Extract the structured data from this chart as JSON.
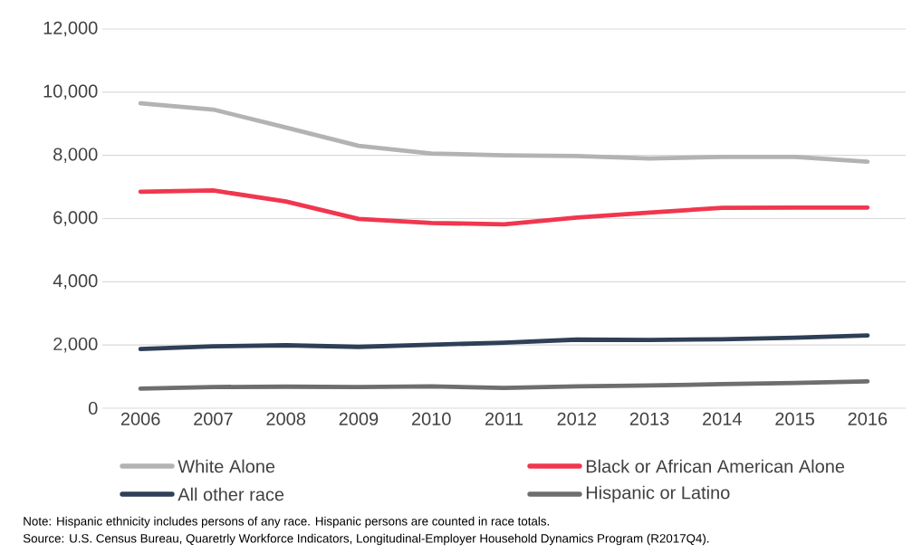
{
  "chart_data": {
    "type": "line",
    "categories": [
      "2006",
      "2007",
      "2008",
      "2009",
      "2010",
      "2011",
      "2012",
      "2013",
      "2014",
      "2015",
      "2016"
    ],
    "series": [
      {
        "name": "White Alone",
        "color": "#b3b3b3",
        "values": [
          9650,
          9450,
          8880,
          8300,
          8060,
          8000,
          7980,
          7900,
          7950,
          7950,
          7800
        ]
      },
      {
        "name": "Black or African American Alone",
        "color": "#f0374e",
        "values": [
          6850,
          6890,
          6540,
          5990,
          5860,
          5820,
          6030,
          6190,
          6340,
          6350,
          6350
        ]
      },
      {
        "name": "All other race",
        "color": "#2e3f56",
        "values": [
          1870,
          1960,
          1990,
          1940,
          2010,
          2070,
          2170,
          2160,
          2180,
          2230,
          2300
        ]
      },
      {
        "name": "Hispanic or Latino",
        "color": "#6e6e6e",
        "values": [
          620,
          670,
          680,
          670,
          690,
          640,
          690,
          720,
          760,
          800,
          850
        ]
      }
    ],
    "ylim": [
      0,
      12000
    ],
    "yticks": [
      {
        "value": 0,
        "label": "0"
      },
      {
        "value": 2000,
        "label": "2,000"
      },
      {
        "value": 4000,
        "label": "4,000"
      },
      {
        "value": 6000,
        "label": "6,000"
      },
      {
        "value": 8000,
        "label": "8,000"
      },
      {
        "value": 10000,
        "label": "10,000"
      },
      {
        "value": 12000,
        "label": "12,000"
      }
    ],
    "grid": "y",
    "legend": "bottom",
    "marker": "none",
    "line_style": "solid",
    "annotations": [
      "Note: Hispanic ethnicity includes persons of any race. Hispanic persons are counted in race totals.",
      "Source: U.S. Census Bureau, Quaretrly Workforce Indicators, Longitudinal-Employer Household Dynamics Program (R2017Q4)."
    ]
  }
}
